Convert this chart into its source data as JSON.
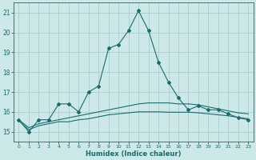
{
  "xlabel": "Humidex (Indice chaleur)",
  "ylabel": "",
  "background_color": "#cce8e8",
  "grid_color": "#aacccc",
  "line_color": "#1a6b6b",
  "xlim": [
    -0.5,
    23.5
  ],
  "ylim": [
    14.5,
    21.5
  ],
  "yticks": [
    15,
    16,
    17,
    18,
    19,
    20,
    21
  ],
  "xticks": [
    0,
    1,
    2,
    3,
    4,
    5,
    6,
    7,
    8,
    9,
    10,
    11,
    12,
    13,
    14,
    15,
    16,
    17,
    18,
    19,
    20,
    21,
    22,
    23
  ],
  "curve1_x": [
    0,
    1,
    2,
    3,
    4,
    5,
    6,
    7,
    8,
    9,
    10,
    11,
    12,
    13,
    14,
    15,
    16,
    17,
    18,
    19,
    20,
    21,
    22,
    23
  ],
  "curve1_y": [
    15.6,
    15.0,
    15.6,
    15.6,
    16.4,
    16.4,
    16.0,
    17.0,
    17.3,
    19.2,
    19.4,
    20.1,
    21.1,
    20.1,
    18.5,
    17.5,
    16.7,
    16.1,
    16.3,
    16.1,
    16.1,
    15.9,
    15.7,
    15.6
  ],
  "curve2_x": [
    0,
    1,
    2,
    3,
    4,
    5,
    6,
    7,
    8,
    9,
    10,
    11,
    12,
    13,
    14,
    15,
    16,
    17,
    18,
    19,
    20,
    21,
    22,
    23
  ],
  "curve2_y": [
    15.6,
    15.2,
    15.4,
    15.5,
    15.6,
    15.7,
    15.8,
    15.9,
    16.0,
    16.1,
    16.2,
    16.3,
    16.4,
    16.45,
    16.45,
    16.45,
    16.4,
    16.4,
    16.35,
    16.25,
    16.15,
    16.05,
    15.95,
    15.9
  ],
  "curve3_x": [
    0,
    1,
    2,
    3,
    4,
    5,
    6,
    7,
    8,
    9,
    10,
    11,
    12,
    13,
    14,
    15,
    16,
    17,
    18,
    19,
    20,
    21,
    22,
    23
  ],
  "curve3_y": [
    15.55,
    15.1,
    15.3,
    15.4,
    15.5,
    15.5,
    15.6,
    15.65,
    15.75,
    15.85,
    15.9,
    15.95,
    16.0,
    16.0,
    16.0,
    15.98,
    15.98,
    15.98,
    15.95,
    15.9,
    15.85,
    15.8,
    15.72,
    15.65
  ],
  "ytick_fontsize": 5.5,
  "xtick_fontsize": 4.5,
  "xlabel_fontsize": 6.0,
  "linewidth": 0.8,
  "markersize": 2.0
}
